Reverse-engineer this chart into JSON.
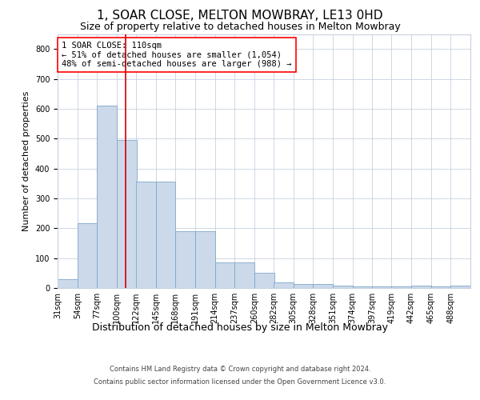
{
  "title": "1, SOAR CLOSE, MELTON MOWBRAY, LE13 0HD",
  "subtitle": "Size of property relative to detached houses in Melton Mowbray",
  "xlabel": "Distribution of detached houses by size in Melton Mowbray",
  "ylabel": "Number of detached properties",
  "bar_color": "#ccd9ea",
  "bar_edge_color": "#7ea7c8",
  "grid_color": "#c8d0df",
  "background_color": "#ffffff",
  "annotation_text": "1 SOAR CLOSE: 110sqm\n← 51% of detached houses are smaller (1,054)\n48% of semi-detached houses are larger (988) →",
  "vline_x": 110,
  "vline_color": "#cc0000",
  "categories": [
    "31sqm",
    "54sqm",
    "77sqm",
    "100sqm",
    "122sqm",
    "145sqm",
    "168sqm",
    "191sqm",
    "214sqm",
    "237sqm",
    "260sqm",
    "282sqm",
    "305sqm",
    "328sqm",
    "351sqm",
    "374sqm",
    "397sqm",
    "419sqm",
    "442sqm",
    "465sqm",
    "488sqm"
  ],
  "bin_edges": [
    31,
    54,
    77,
    100,
    122,
    145,
    168,
    191,
    214,
    237,
    260,
    282,
    305,
    328,
    351,
    374,
    397,
    419,
    442,
    465,
    488
  ],
  "bin_width": 23,
  "values": [
    30,
    218,
    610,
    495,
    355,
    355,
    190,
    190,
    85,
    85,
    50,
    20,
    13,
    13,
    8,
    5,
    5,
    5,
    8,
    5,
    8
  ],
  "ylim": [
    0,
    850
  ],
  "yticks": [
    0,
    100,
    200,
    300,
    400,
    500,
    600,
    700,
    800
  ],
  "footer_line1": "Contains HM Land Registry data © Crown copyright and database right 2024.",
  "footer_line2": "Contains public sector information licensed under the Open Government Licence v3.0.",
  "title_fontsize": 11,
  "subtitle_fontsize": 9,
  "tick_fontsize": 7,
  "ylabel_fontsize": 8,
  "xlabel_fontsize": 9,
  "annot_fontsize": 7.5,
  "footer_fontsize": 6
}
